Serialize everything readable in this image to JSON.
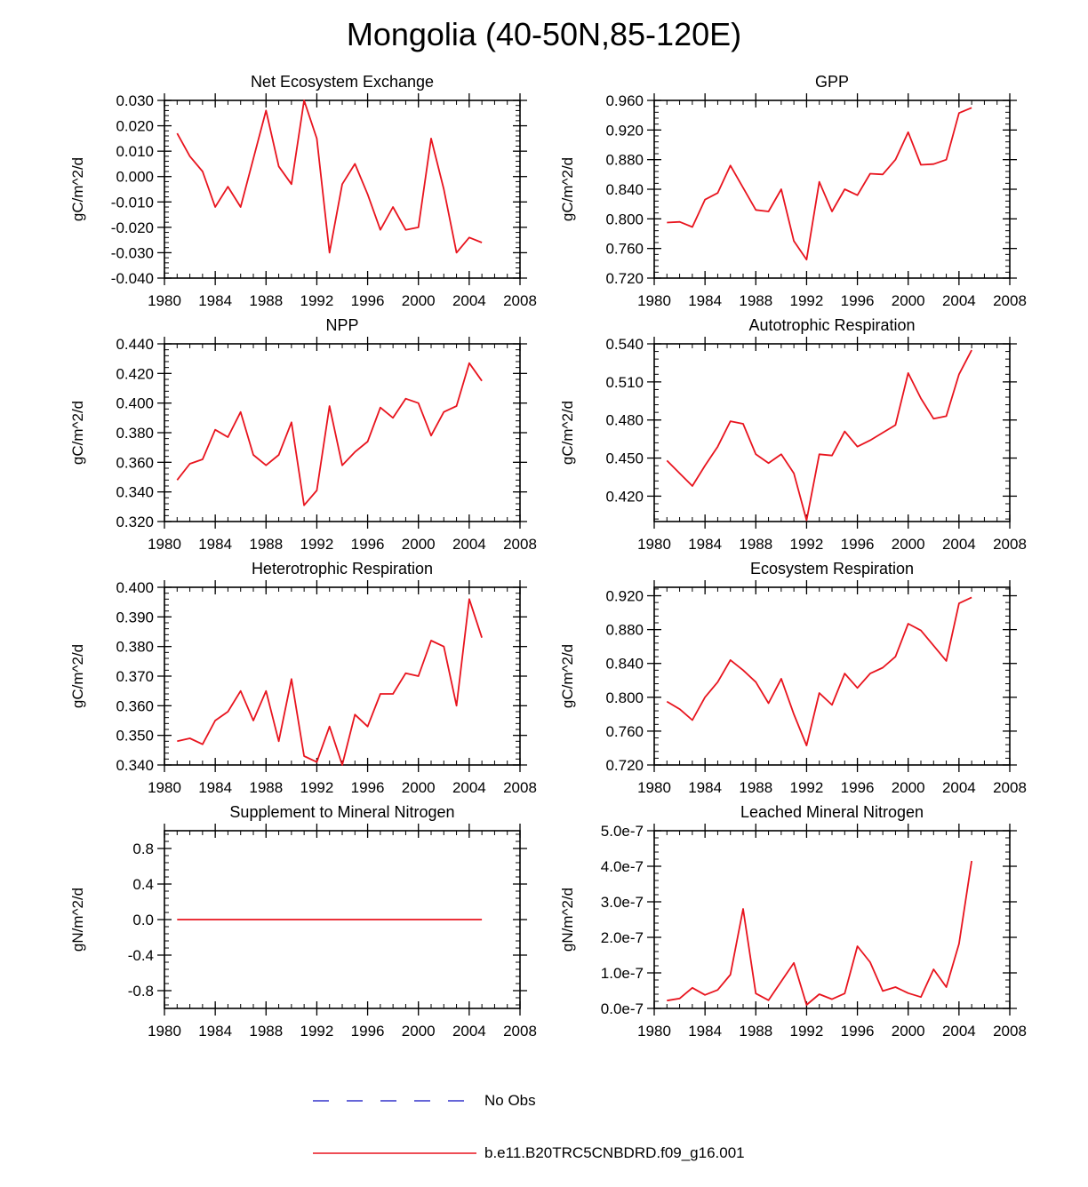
{
  "title": "Mongolia (40-50N,85-120E)",
  "legend": {
    "position": "bottom",
    "entries": [
      {
        "label": "No Obs",
        "color": "#3333cc",
        "dash": "dashed"
      },
      {
        "label": "b.e11.B20TRC5CNBDRD.f09_g16.001",
        "color": "#e8141e",
        "dash": "solid"
      }
    ]
  },
  "chart_data": [
    {
      "type": "line",
      "title": "Net Ecosystem Exchange",
      "ylabel": "gC/m^2/d",
      "xlabel": "",
      "xlim": [
        1980,
        2008
      ],
      "xticks": [
        "1980",
        "1984",
        "1988",
        "1992",
        "1996",
        "2000",
        "2004",
        "2008"
      ],
      "ylim": [
        -0.04,
        0.03
      ],
      "yticks": [
        "-0.040",
        "-0.030",
        "-0.020",
        "-0.010",
        "0.000",
        "0.010",
        "0.020",
        "0.030"
      ],
      "x": [
        1981,
        1982,
        1983,
        1984,
        1985,
        1986,
        1987,
        1988,
        1989,
        1990,
        1991,
        1992,
        1993,
        1994,
        1995,
        1996,
        1997,
        1998,
        1999,
        2000,
        2001,
        2002,
        2003,
        2004,
        2005
      ],
      "series": [
        {
          "color": "#e8141e",
          "values": [
            0.017,
            0.008,
            0.002,
            -0.012,
            -0.004,
            -0.012,
            0.007,
            0.026,
            0.004,
            -0.003,
            0.03,
            0.015,
            -0.03,
            -0.003,
            0.005,
            -0.007,
            -0.021,
            -0.012,
            -0.021,
            -0.02,
            0.015,
            -0.005,
            -0.03,
            -0.024,
            -0.026
          ]
        }
      ]
    },
    {
      "type": "line",
      "title": "GPP",
      "ylabel": "gC/m^2/d",
      "xlabel": "",
      "xlim": [
        1980,
        2008
      ],
      "xticks": [
        "1980",
        "1984",
        "1988",
        "1992",
        "1996",
        "2000",
        "2004",
        "2008"
      ],
      "ylim": [
        0.72,
        0.96
      ],
      "yticks": [
        "0.720",
        "0.760",
        "0.800",
        "0.840",
        "0.880",
        "0.920",
        "0.960"
      ],
      "x": [
        1981,
        1982,
        1983,
        1984,
        1985,
        1986,
        1987,
        1988,
        1989,
        1990,
        1991,
        1992,
        1993,
        1994,
        1995,
        1996,
        1997,
        1998,
        1999,
        2000,
        2001,
        2002,
        2003,
        2004,
        2005
      ],
      "series": [
        {
          "color": "#e8141e",
          "values": [
            0.795,
            0.796,
            0.789,
            0.826,
            0.835,
            0.872,
            0.842,
            0.812,
            0.81,
            0.84,
            0.77,
            0.745,
            0.85,
            0.81,
            0.84,
            0.832,
            0.861,
            0.86,
            0.88,
            0.917,
            0.873,
            0.874,
            0.88,
            0.943,
            0.95
          ]
        }
      ]
    },
    {
      "type": "line",
      "title": "NPP",
      "ylabel": "gC/m^2/d",
      "xlabel": "",
      "xlim": [
        1980,
        2008
      ],
      "xticks": [
        "1980",
        "1984",
        "1988",
        "1992",
        "1996",
        "2000",
        "2004",
        "2008"
      ],
      "ylim": [
        0.32,
        0.44
      ],
      "yticks": [
        "0.320",
        "0.340",
        "0.360",
        "0.380",
        "0.400",
        "0.420",
        "0.440"
      ],
      "x": [
        1981,
        1982,
        1983,
        1984,
        1985,
        1986,
        1987,
        1988,
        1989,
        1990,
        1991,
        1992,
        1993,
        1994,
        1995,
        1996,
        1997,
        1998,
        1999,
        2000,
        2001,
        2002,
        2003,
        2004,
        2005
      ],
      "series": [
        {
          "color": "#e8141e",
          "values": [
            0.348,
            0.359,
            0.362,
            0.382,
            0.377,
            0.394,
            0.365,
            0.358,
            0.365,
            0.387,
            0.331,
            0.341,
            0.398,
            0.358,
            0.367,
            0.374,
            0.397,
            0.39,
            0.403,
            0.4,
            0.378,
            0.394,
            0.398,
            0.427,
            0.415
          ]
        }
      ]
    },
    {
      "type": "line",
      "title": "Autotrophic Respiration",
      "ylabel": "gC/m^2/d",
      "xlabel": "",
      "xlim": [
        1980,
        2008
      ],
      "xticks": [
        "1980",
        "1984",
        "1988",
        "1992",
        "1996",
        "2000",
        "2004",
        "2008"
      ],
      "ylim": [
        0.4,
        0.54
      ],
      "yticks": [
        "0.420",
        "0.450",
        "0.480",
        "0.510",
        "0.540"
      ],
      "x": [
        1981,
        1982,
        1983,
        1984,
        1985,
        1986,
        1987,
        1988,
        1989,
        1990,
        1991,
        1992,
        1993,
        1994,
        1995,
        1996,
        1997,
        1998,
        1999,
        2000,
        2001,
        2002,
        2003,
        2004,
        2005
      ],
      "series": [
        {
          "color": "#e8141e",
          "values": [
            0.448,
            0.438,
            0.428,
            0.444,
            0.459,
            0.479,
            0.477,
            0.453,
            0.446,
            0.453,
            0.438,
            0.401,
            0.453,
            0.452,
            0.471,
            0.459,
            0.464,
            0.47,
            0.476,
            0.517,
            0.497,
            0.481,
            0.483,
            0.516,
            0.535
          ]
        }
      ]
    },
    {
      "type": "line",
      "title": "Heterotrophic Respiration",
      "ylabel": "gC/m^2/d",
      "xlabel": "",
      "xlim": [
        1980,
        2008
      ],
      "xticks": [
        "1980",
        "1984",
        "1988",
        "1992",
        "1996",
        "2000",
        "2004",
        "2008"
      ],
      "ylim": [
        0.34,
        0.4
      ],
      "yticks": [
        "0.340",
        "0.350",
        "0.360",
        "0.370",
        "0.380",
        "0.390",
        "0.400"
      ],
      "x": [
        1981,
        1982,
        1983,
        1984,
        1985,
        1986,
        1987,
        1988,
        1989,
        1990,
        1991,
        1992,
        1993,
        1994,
        1995,
        1996,
        1997,
        1998,
        1999,
        2000,
        2001,
        2002,
        2003,
        2004,
        2005
      ],
      "series": [
        {
          "color": "#e8141e",
          "values": [
            0.348,
            0.349,
            0.347,
            0.355,
            0.358,
            0.365,
            0.355,
            0.365,
            0.348,
            0.369,
            0.343,
            0.341,
            0.353,
            0.34,
            0.357,
            0.353,
            0.364,
            0.364,
            0.371,
            0.37,
            0.382,
            0.38,
            0.36,
            0.396,
            0.383
          ]
        }
      ]
    },
    {
      "type": "line",
      "title": "Ecosystem Respiration",
      "ylabel": "gC/m^2/d",
      "xlabel": "",
      "xlim": [
        1980,
        2008
      ],
      "xticks": [
        "1980",
        "1984",
        "1988",
        "1992",
        "1996",
        "2000",
        "2004",
        "2008"
      ],
      "ylim": [
        0.72,
        0.93
      ],
      "yticks": [
        "0.720",
        "0.760",
        "0.800",
        "0.840",
        "0.880",
        "0.920"
      ],
      "x": [
        1981,
        1982,
        1983,
        1984,
        1985,
        1986,
        1987,
        1988,
        1989,
        1990,
        1991,
        1992,
        1993,
        1994,
        1995,
        1996,
        1997,
        1998,
        1999,
        2000,
        2001,
        2002,
        2003,
        2004,
        2005
      ],
      "series": [
        {
          "color": "#e8141e",
          "values": [
            0.795,
            0.786,
            0.773,
            0.8,
            0.818,
            0.844,
            0.832,
            0.818,
            0.793,
            0.822,
            0.78,
            0.743,
            0.805,
            0.791,
            0.828,
            0.811,
            0.828,
            0.835,
            0.848,
            0.887,
            0.879,
            0.861,
            0.843,
            0.911,
            0.918
          ]
        }
      ]
    },
    {
      "type": "line",
      "title": "Supplement to Mineral Nitrogen",
      "ylabel": "gN/m^2/d",
      "xlabel": "",
      "xlim": [
        1980,
        2008
      ],
      "xticks": [
        "1980",
        "1984",
        "1988",
        "1992",
        "1996",
        "2000",
        "2004",
        "2008"
      ],
      "ylim": [
        -1.0,
        1.0
      ],
      "yticks": [
        "-0.8",
        "-0.4",
        "0.0",
        "0.4",
        "0.8"
      ],
      "x": [
        1981,
        1982,
        1983,
        1984,
        1985,
        1986,
        1987,
        1988,
        1989,
        1990,
        1991,
        1992,
        1993,
        1994,
        1995,
        1996,
        1997,
        1998,
        1999,
        2000,
        2001,
        2002,
        2003,
        2004,
        2005
      ],
      "series": [
        {
          "color": "#e8141e",
          "values": [
            0,
            0,
            0,
            0,
            0,
            0,
            0,
            0,
            0,
            0,
            0,
            0,
            0,
            0,
            0,
            0,
            0,
            0,
            0,
            0,
            0,
            0,
            0,
            0,
            0
          ]
        }
      ]
    },
    {
      "type": "line",
      "title": "Leached Mineral Nitrogen",
      "ylabel": "gN/m^2/d",
      "xlabel": "",
      "xlim": [
        1980,
        2008
      ],
      "xticks": [
        "1980",
        "1984",
        "1988",
        "1992",
        "1996",
        "2000",
        "2004",
        "2008"
      ],
      "ylim": [
        0,
        5e-07
      ],
      "yticks": [
        "0.0e-7",
        "1.0e-7",
        "2.0e-7",
        "3.0e-7",
        "4.0e-7",
        "5.0e-7"
      ],
      "x": [
        1981,
        1982,
        1983,
        1984,
        1985,
        1986,
        1987,
        1988,
        1989,
        1990,
        1991,
        1992,
        1993,
        1994,
        1995,
        1996,
        1997,
        1998,
        1999,
        2000,
        2001,
        2002,
        2003,
        2004,
        2005
      ],
      "series": [
        {
          "color": "#e8141e",
          "values": [
            2.2e-08,
            2.8e-08,
            5.8e-08,
            3.8e-08,
            5.2e-08,
            9.5e-08,
            2.8e-07,
            4.2e-08,
            2.3e-08,
            7.6e-08,
            1.28e-07,
            1e-08,
            4e-08,
            2.6e-08,
            4.2e-08,
            1.75e-07,
            1.3e-07,
            4.9e-08,
            6e-08,
            4.3e-08,
            3.2e-08,
            1.1e-07,
            6e-08,
            1.82e-07,
            4.15e-07
          ]
        }
      ]
    }
  ]
}
